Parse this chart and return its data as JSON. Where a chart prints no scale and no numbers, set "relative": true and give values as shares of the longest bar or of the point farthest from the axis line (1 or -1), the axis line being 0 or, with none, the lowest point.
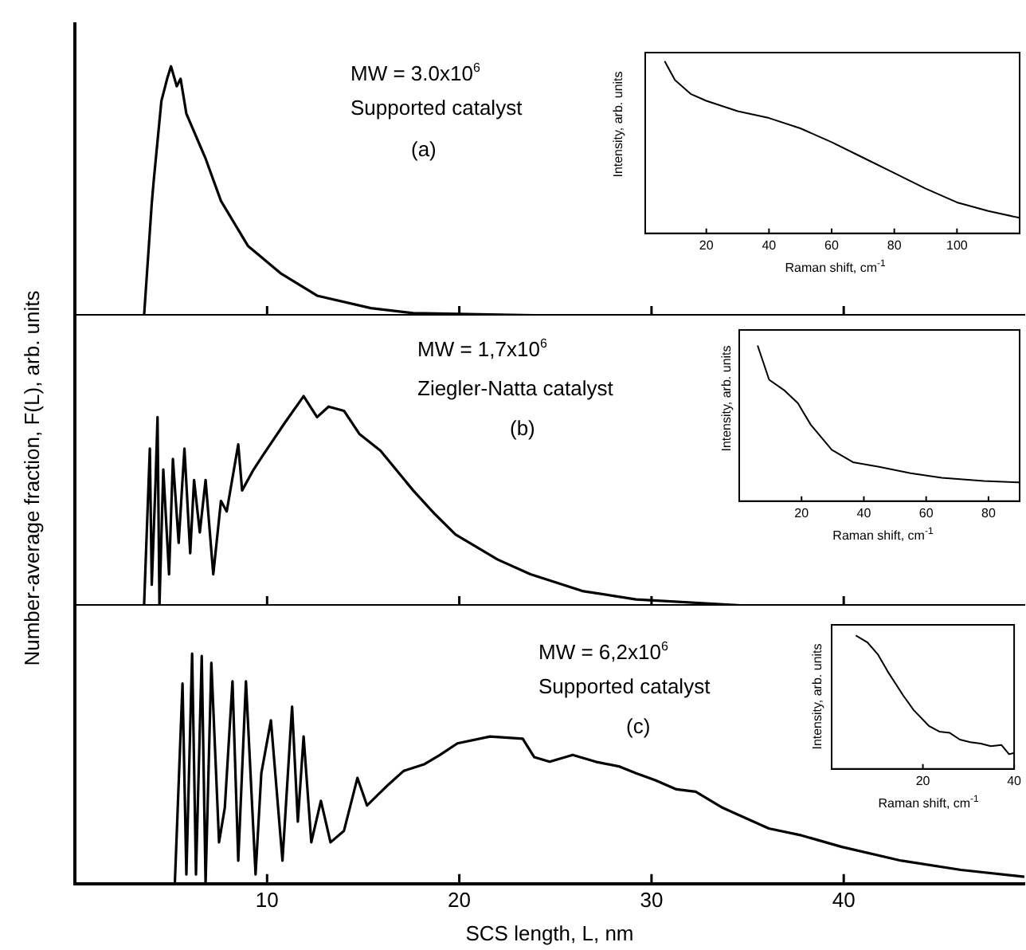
{
  "chart_data": [
    {
      "type": "line",
      "relative": true,
      "xlim": [
        0,
        49.4
      ],
      "xticks": [
        10,
        20,
        30,
        40
      ],
      "tick_labels": false,
      "annotations": [
        "MW = 3.0x10$^{6}$",
        "Supported catalyst",
        "(a)"
      ],
      "x": [
        3.6,
        4.0,
        4.1,
        4.5,
        4.8,
        5.0,
        5.3,
        5.5,
        5.8,
        6.8,
        7.6,
        9.0,
        10.7,
        12.6,
        15.4,
        17.6,
        25,
        35,
        49.4
      ],
      "series": [
        {
          "color": "#000000",
          "values": [
            0,
            0.45,
            0.54,
            0.86,
            0.95,
            1.0,
            0.92,
            0.95,
            0.81,
            0.63,
            0.46,
            0.28,
            0.17,
            0.08,
            0.03,
            0.01,
            0,
            0,
            0
          ]
        }
      ]
    },
    {
      "type": "line",
      "relative": true,
      "xlim": [
        0.5,
        120
      ],
      "xticks": [
        20,
        40,
        60,
        80,
        100
      ],
      "tick_labels": "x",
      "xlabel": "Raman shift, cm$^{-1}$",
      "ylabel": "Intensity, arb. units",
      "x": [
        6.7,
        10,
        15,
        20,
        30,
        40,
        50,
        60,
        70,
        80,
        90,
        100,
        110,
        120
      ],
      "series": [
        {
          "color": "#000000",
          "values": [
            1.0,
            0.89,
            0.81,
            0.77,
            0.71,
            0.67,
            0.61,
            0.53,
            0.44,
            0.35,
            0.26,
            0.18,
            0.13,
            0.09
          ]
        }
      ]
    },
    {
      "type": "line",
      "relative": true,
      "xlim": [
        0,
        49.4
      ],
      "xticks": [
        10,
        20,
        30,
        40
      ],
      "tick_labels": false,
      "ylabel": "Number-average fraction, F(L), arb. units",
      "annotations": [
        "MW = 1,7x10$^{6}$",
        "Ziegler-Natta catalyst",
        "(b)"
      ],
      "x": [
        3.6,
        3.9,
        4.0,
        4.2,
        4.3,
        4.4,
        4.6,
        4.9,
        5.1,
        5.4,
        5.7,
        6.0,
        6.2,
        6.5,
        6.8,
        7.2,
        7.6,
        7.9,
        8.5,
        8.7,
        9.3,
        9.8,
        10.9,
        11.9,
        12.6,
        13.2,
        14.0,
        14.8,
        15.9,
        17.6,
        18.7,
        19.8,
        22.0,
        23.7,
        26.4,
        29.2,
        35,
        49.4
      ],
      "series": [
        {
          "color": "#000000",
          "values": [
            0,
            0.75,
            0.1,
            0.6,
            0.9,
            0,
            0.65,
            0.15,
            0.7,
            0.3,
            0.75,
            0.25,
            0.6,
            0.35,
            0.6,
            0.15,
            0.5,
            0.45,
            0.77,
            0.55,
            0.65,
            0.72,
            0.87,
            1.0,
            0.9,
            0.95,
            0.93,
            0.82,
            0.74,
            0.55,
            0.44,
            0.34,
            0.22,
            0.15,
            0.07,
            0.03,
            0,
            0
          ]
        }
      ]
    },
    {
      "type": "line",
      "relative": true,
      "xlim": [
        0,
        90
      ],
      "xticks": [
        20,
        40,
        60,
        80
      ],
      "tick_labels": "x",
      "xlabel": "Raman shift, cm$^{-1}$",
      "ylabel": "Intensity, arb. units",
      "x": [
        5.9,
        9.6,
        14.6,
        18.8,
        23,
        29.7,
        36.5,
        44.9,
        55,
        65,
        78.5,
        90
      ],
      "series": [
        {
          "color": "#000000",
          "values": [
            1.0,
            0.78,
            0.71,
            0.63,
            0.49,
            0.33,
            0.25,
            0.22,
            0.18,
            0.15,
            0.13,
            0.12
          ]
        }
      ]
    },
    {
      "type": "line",
      "relative": true,
      "xlim": [
        0,
        49.4
      ],
      "xticks": [
        10,
        20,
        30,
        40
      ],
      "tick_labels": "x",
      "xlabel": "SCS length, L, nm",
      "annotations": [
        "MW = 6,2x10$^{6}$",
        "Supported catalyst",
        "(c)"
      ],
      "x": [
        5.2,
        5.6,
        5.8,
        6.1,
        6.3,
        6.6,
        6.8,
        7.1,
        7.5,
        7.8,
        8.2,
        8.5,
        8.9,
        9.4,
        9.7,
        10.2,
        10.8,
        11.3,
        11.6,
        11.9,
        12.3,
        12.8,
        13.3,
        14.0,
        14.7,
        15.2,
        16.3,
        17.1,
        18.2,
        19.0,
        19.9,
        21.6,
        23.3,
        23.9,
        24.7,
        25.9,
        27.1,
        28.3,
        29.2,
        30.2,
        31.3,
        32.3,
        33.7,
        36.1,
        37.8,
        39.9,
        43.0,
        46.1,
        49.4
      ],
      "series": [
        {
          "color": "#000000",
          "values": [
            0,
            0.87,
            0.04,
            1.0,
            0.04,
            0.99,
            0,
            0.96,
            0.18,
            0.33,
            0.88,
            0.1,
            0.88,
            0.04,
            0.48,
            0.71,
            0.1,
            0.77,
            0.27,
            0.64,
            0.18,
            0.36,
            0.18,
            0.23,
            0.46,
            0.34,
            0.43,
            0.49,
            0.52,
            0.56,
            0.61,
            0.64,
            0.63,
            0.55,
            0.53,
            0.56,
            0.53,
            0.51,
            0.48,
            0.45,
            0.41,
            0.4,
            0.33,
            0.24,
            0.21,
            0.16,
            0.1,
            0.06,
            0.03
          ]
        }
      ]
    },
    {
      "type": "line",
      "relative": true,
      "xlim": [
        0,
        40
      ],
      "xticks": [
        20,
        40
      ],
      "tick_labels": "x",
      "xlabel": "Raman shift, cm$^{-1}$",
      "ylabel": "Intensity, arb. units",
      "x": [
        5.3,
        7.8,
        10.1,
        12.3,
        15.7,
        18,
        21.4,
        23.6,
        25.9,
        28.1,
        30.4,
        32.7,
        34.9,
        37.2,
        38.9,
        40
      ],
      "series": [
        {
          "color": "#000000",
          "values": [
            1.0,
            0.95,
            0.86,
            0.73,
            0.55,
            0.44,
            0.32,
            0.28,
            0.27,
            0.22,
            0.2,
            0.19,
            0.17,
            0.18,
            0.11,
            0.12
          ]
        }
      ]
    }
  ]
}
